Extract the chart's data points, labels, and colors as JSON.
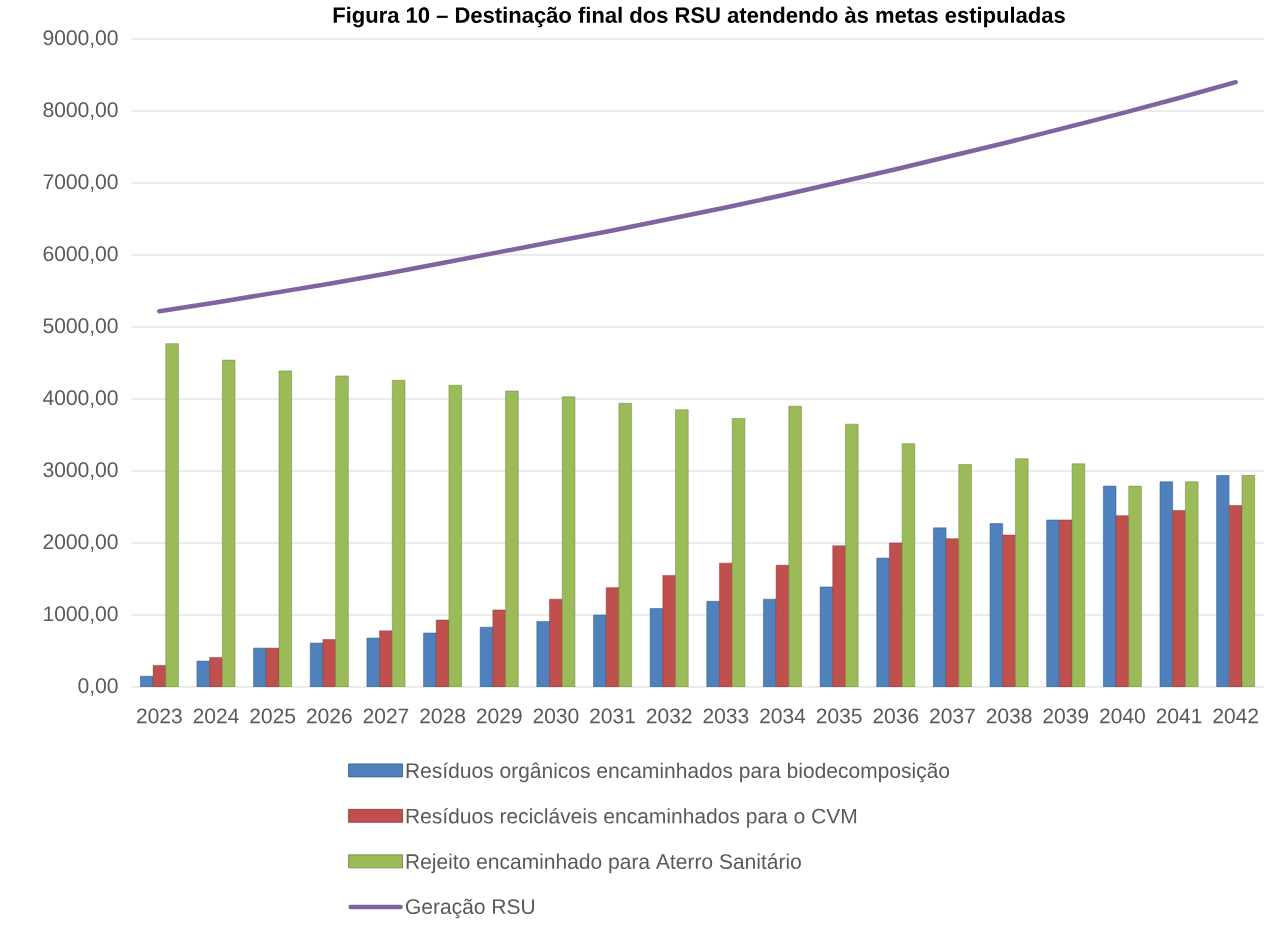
{
  "chart_data": {
    "type": "bar",
    "title": "Figura 10 – Destinação final dos RSU atendendo às metas estipuladas",
    "categories": [
      "2023",
      "2024",
      "2025",
      "2026",
      "2027",
      "2028",
      "2029",
      "2030",
      "2031",
      "2032",
      "2033",
      "2034",
      "2035",
      "2036",
      "2037",
      "2038",
      "2039",
      "2040",
      "2041",
      "2042"
    ],
    "series": [
      {
        "name": "Resíduos orgânicos encaminhados para biodecomposição",
        "color": "#4f81bd",
        "values": [
          150,
          360,
          540,
          610,
          680,
          750,
          830,
          910,
          1000,
          1090,
          1190,
          1220,
          1390,
          1790,
          2210,
          2270,
          2320,
          2790,
          2850,
          2940
        ]
      },
      {
        "name": "Resíduos recicláveis encaminhados para o CVM",
        "color": "#c0504d",
        "values": [
          300,
          410,
          540,
          660,
          780,
          930,
          1070,
          1220,
          1380,
          1550,
          1720,
          1690,
          1960,
          2000,
          2060,
          2110,
          2320,
          2380,
          2450,
          2520
        ]
      },
      {
        "name": "Rejeito encaminhado para Aterro Sanitário",
        "color": "#9bbb59",
        "values": [
          4770,
          4540,
          4390,
          4320,
          4260,
          4190,
          4110,
          4030,
          3940,
          3850,
          3730,
          3900,
          3650,
          3380,
          3090,
          3170,
          3100,
          2790,
          2850,
          2940
        ]
      },
      {
        "name": "Geração RSU",
        "type": "line",
        "color": "#8064a2",
        "values": [
          5220,
          5340,
          5470,
          5600,
          5740,
          5890,
          6040,
          6190,
          6340,
          6500,
          6660,
          6830,
          7010,
          7190,
          7380,
          7570,
          7770,
          7970,
          8180,
          8400
        ]
      }
    ],
    "ylim": [
      0,
      9000
    ],
    "yticks": [
      {
        "value": 0,
        "label": "0,00"
      },
      {
        "value": 1000,
        "label": "1000,00"
      },
      {
        "value": 2000,
        "label": "2000,00"
      },
      {
        "value": 3000,
        "label": "3000,00"
      },
      {
        "value": 4000,
        "label": "4000,00"
      },
      {
        "value": 5000,
        "label": "5000,00"
      },
      {
        "value": 6000,
        "label": "6000,00"
      },
      {
        "value": 7000,
        "label": "7000,00"
      },
      {
        "value": 8000,
        "label": "8000,00"
      },
      {
        "value": 9000,
        "label": "9000,00"
      }
    ],
    "grid": "y",
    "legend": "bottom"
  }
}
